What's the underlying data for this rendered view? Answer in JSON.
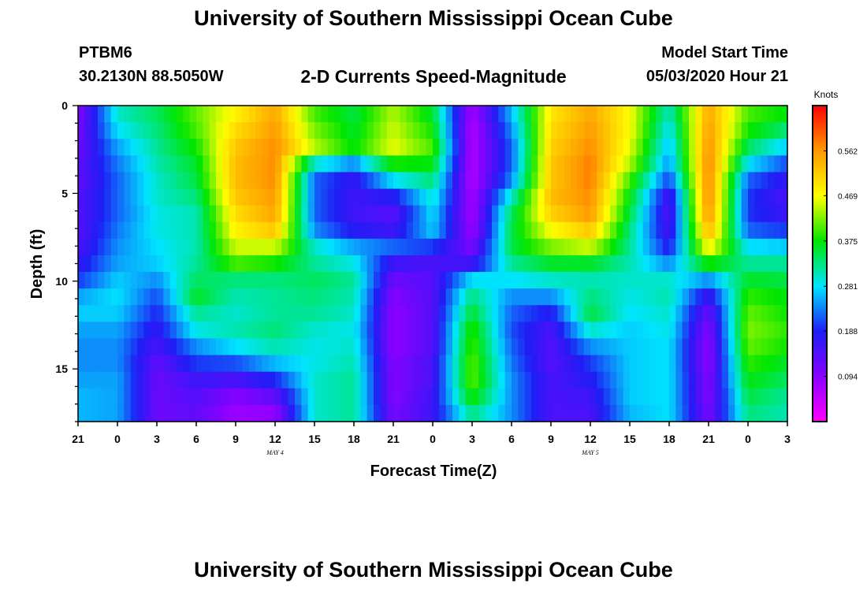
{
  "header": {
    "title": "University of Southern Mississippi Ocean Cube",
    "station_id": "PTBM6",
    "station_coords": "30.2130N 88.5050W",
    "chart_title": "2-D Currents Speed-Magnitude",
    "model_start_label": "Model Start Time",
    "model_start_value": "05/03/2020 Hour 21"
  },
  "footer": {
    "title": "University of Southern Mississippi Ocean Cube"
  },
  "chart_data": {
    "type": "heatmap",
    "title": "2-D Currents Speed-Magnitude",
    "xlabel": "Forecast Time(Z)",
    "ylabel": "Depth (ft)",
    "x_tick_labels": [
      "21",
      "0",
      "3",
      "6",
      "9",
      "12",
      "15",
      "18",
      "21",
      "0",
      "3",
      "6",
      "9",
      "12",
      "15",
      "18",
      "21",
      "0",
      "3"
    ],
    "x_date_labels": [
      {
        "label": "MAY 4",
        "at_tick": 5
      },
      {
        "label": "MAY 5",
        "at_tick": 13
      }
    ],
    "y_ticks": [
      0,
      5,
      10,
      15
    ],
    "ylim": [
      0,
      18
    ],
    "y_inverted": true,
    "colorbar": {
      "unit": "Knots",
      "tick_values": [
        "0.094",
        "0.188",
        "0.281",
        "0.375",
        "0.469",
        "0.562"
      ],
      "range": [
        0,
        0.656
      ],
      "colors": [
        "#ff00ff",
        "#8a00ff",
        "#1e1ef5",
        "#00e5ff",
        "#00e600",
        "#ffff00",
        "#ff9900",
        "#ff0000"
      ]
    },
    "depth_levels_ft": [
      0,
      1,
      2,
      3,
      4,
      5,
      6,
      7,
      8,
      9,
      10,
      11,
      12,
      13,
      14,
      15,
      16,
      17,
      18
    ],
    "speed_profiles_by_column": [
      [
        0.1,
        0.11,
        0.12,
        0.13,
        0.13,
        0.14,
        0.14,
        0.14,
        0.15,
        0.17,
        0.2,
        0.25,
        0.27,
        0.25,
        0.24,
        0.24,
        0.25,
        0.26,
        0.26
      ],
      [
        0.3,
        0.28,
        0.25,
        0.23,
        0.22,
        0.22,
        0.22,
        0.23,
        0.24,
        0.25,
        0.27,
        0.28,
        0.27,
        0.25,
        0.24,
        0.24,
        0.25,
        0.25,
        0.25
      ],
      [
        0.34,
        0.33,
        0.32,
        0.31,
        0.3,
        0.3,
        0.29,
        0.29,
        0.28,
        0.27,
        0.24,
        0.21,
        0.19,
        0.17,
        0.15,
        0.13,
        0.12,
        0.12,
        0.12
      ],
      [
        0.41,
        0.4,
        0.38,
        0.36,
        0.35,
        0.33,
        0.31,
        0.31,
        0.31,
        0.32,
        0.34,
        0.36,
        0.32,
        0.29,
        0.24,
        0.2,
        0.16,
        0.14,
        0.13
      ],
      [
        0.48,
        0.5,
        0.52,
        0.53,
        0.53,
        0.52,
        0.5,
        0.48,
        0.45,
        0.4,
        0.33,
        0.31,
        0.3,
        0.31,
        0.28,
        0.21,
        0.15,
        0.1,
        0.08
      ],
      [
        0.55,
        0.56,
        0.57,
        0.57,
        0.57,
        0.56,
        0.55,
        0.52,
        0.45,
        0.38,
        0.33,
        0.32,
        0.32,
        0.33,
        0.31,
        0.26,
        0.19,
        0.13,
        0.09
      ],
      [
        0.4,
        0.42,
        0.44,
        0.3,
        0.22,
        0.22,
        0.22,
        0.24,
        0.3,
        0.32,
        0.34,
        0.33,
        0.32,
        0.3,
        0.29,
        0.29,
        0.3,
        0.3,
        0.3
      ],
      [
        0.35,
        0.36,
        0.37,
        0.24,
        0.17,
        0.16,
        0.16,
        0.18,
        0.25,
        0.29,
        0.32,
        0.31,
        0.3,
        0.29,
        0.3,
        0.31,
        0.32,
        0.32,
        0.32
      ],
      [
        0.44,
        0.45,
        0.46,
        0.38,
        0.28,
        0.18,
        0.14,
        0.16,
        0.22,
        0.16,
        0.12,
        0.1,
        0.09,
        0.09,
        0.09,
        0.1,
        0.1,
        0.1,
        0.11
      ],
      [
        0.36,
        0.38,
        0.4,
        0.37,
        0.33,
        0.3,
        0.28,
        0.27,
        0.2,
        0.15,
        0.14,
        0.14,
        0.14,
        0.14,
        0.14,
        0.15,
        0.15,
        0.16,
        0.16
      ],
      [
        0.07,
        0.06,
        0.06,
        0.06,
        0.06,
        0.07,
        0.07,
        0.08,
        0.11,
        0.16,
        0.28,
        0.33,
        0.36,
        0.39,
        0.4,
        0.41,
        0.41,
        0.38,
        0.33
      ],
      [
        0.26,
        0.24,
        0.22,
        0.22,
        0.24,
        0.3,
        0.34,
        0.35,
        0.35,
        0.32,
        0.28,
        0.24,
        0.22,
        0.21,
        0.22,
        0.23,
        0.24,
        0.24,
        0.24
      ],
      [
        0.49,
        0.5,
        0.51,
        0.52,
        0.52,
        0.53,
        0.51,
        0.47,
        0.42,
        0.36,
        0.3,
        0.24,
        0.18,
        0.15,
        0.14,
        0.14,
        0.15,
        0.15,
        0.15
      ],
      [
        0.55,
        0.56,
        0.57,
        0.58,
        0.58,
        0.57,
        0.56,
        0.52,
        0.45,
        0.36,
        0.31,
        0.33,
        0.35,
        0.3,
        0.24,
        0.2,
        0.18,
        0.16,
        0.15
      ],
      [
        0.47,
        0.47,
        0.46,
        0.44,
        0.4,
        0.37,
        0.35,
        0.33,
        0.32,
        0.31,
        0.3,
        0.29,
        0.28,
        0.27,
        0.27,
        0.27,
        0.27,
        0.27,
        0.26
      ],
      [
        0.3,
        0.28,
        0.26,
        0.24,
        0.2,
        0.15,
        0.14,
        0.15,
        0.18,
        0.24,
        0.3,
        0.31,
        0.3,
        0.29,
        0.28,
        0.28,
        0.28,
        0.28,
        0.28
      ],
      [
        0.55,
        0.56,
        0.57,
        0.58,
        0.58,
        0.58,
        0.57,
        0.54,
        0.48,
        0.38,
        0.24,
        0.16,
        0.12,
        0.1,
        0.09,
        0.09,
        0.1,
        0.1,
        0.11
      ],
      [
        0.4,
        0.38,
        0.34,
        0.28,
        0.22,
        0.2,
        0.2,
        0.22,
        0.28,
        0.32,
        0.36,
        0.39,
        0.41,
        0.42,
        0.41,
        0.39,
        0.37,
        0.35,
        0.33
      ],
      [
        0.37,
        0.33,
        0.27,
        0.21,
        0.17,
        0.15,
        0.16,
        0.2,
        0.27,
        0.32,
        0.35,
        0.37,
        0.38,
        0.39,
        0.38,
        0.36,
        0.34,
        0.32,
        0.31
      ]
    ]
  }
}
